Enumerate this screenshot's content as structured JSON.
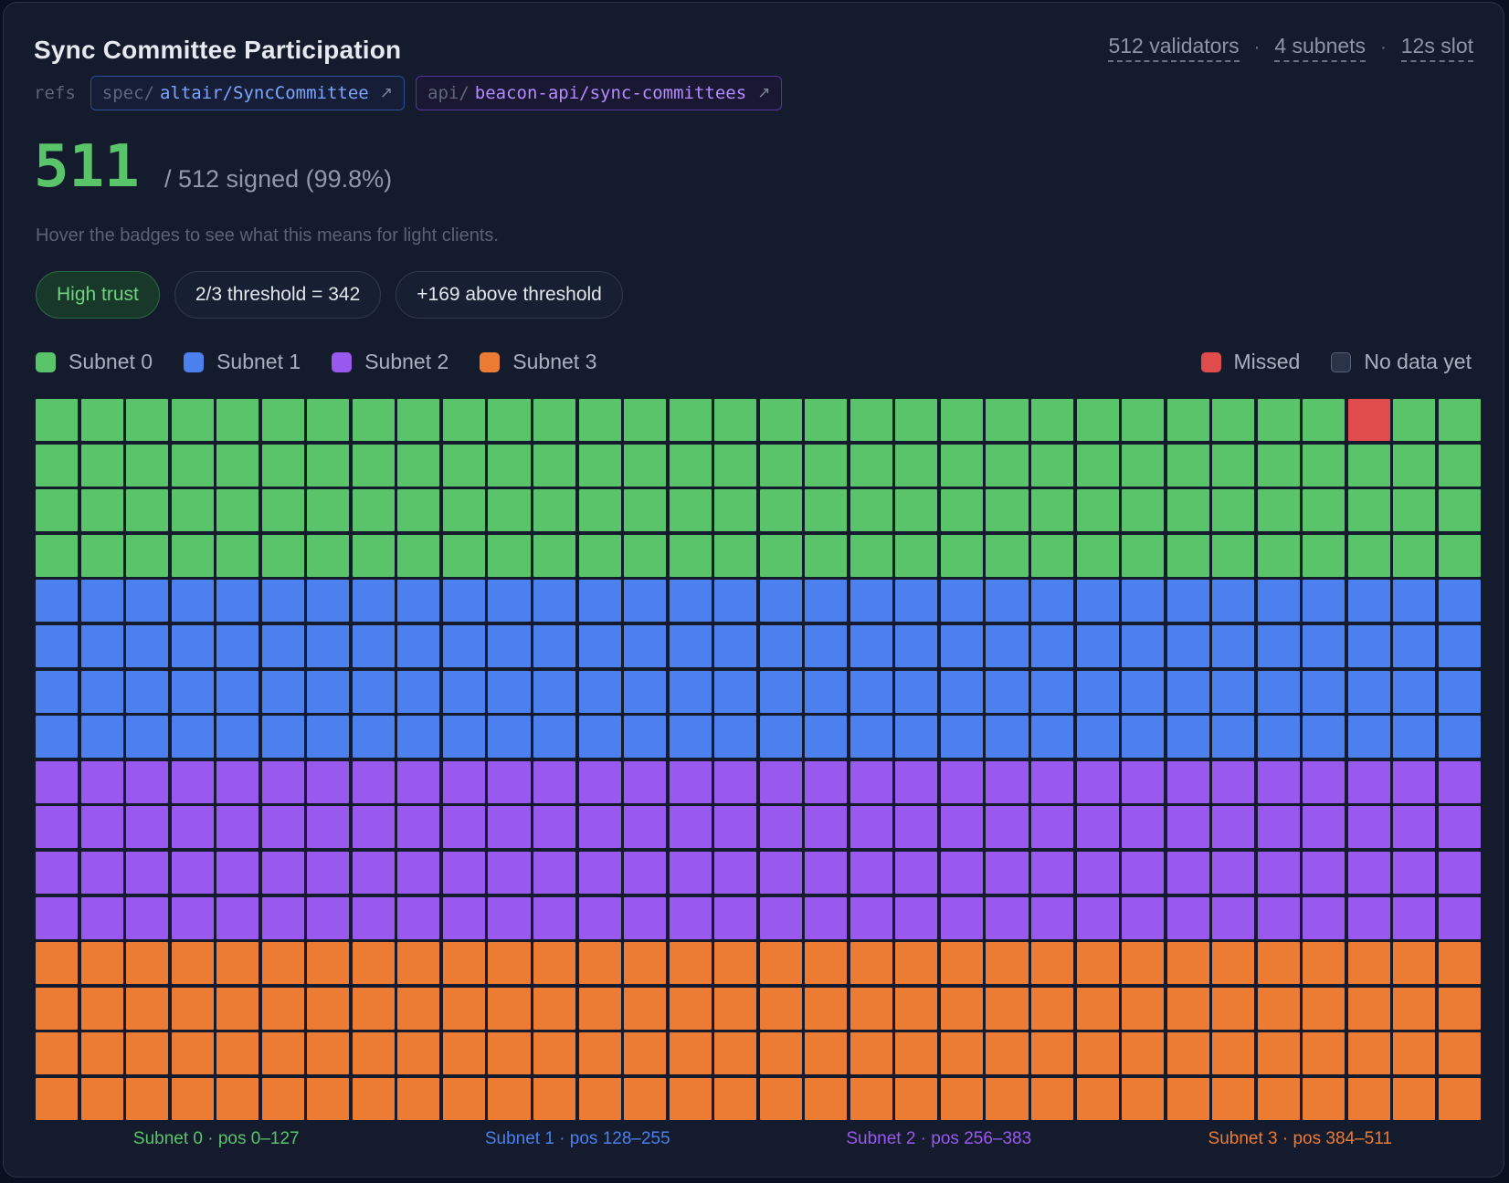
{
  "header": {
    "title": "Sync Committee Participation",
    "stats": [
      "512 validators",
      "4 subnets",
      "12s slot"
    ]
  },
  "refs": {
    "label": "refs",
    "spec": {
      "prefix": "spec/",
      "path": "altair/SyncCommittee",
      "arrow": "↗"
    },
    "api": {
      "prefix": "api/",
      "path": "beacon-api/sync-committees",
      "arrow": "↗"
    }
  },
  "summary": {
    "signed": "511",
    "detail": "/ 512 signed (99.8%)",
    "hint": "Hover the badges to see what this means for light clients."
  },
  "badges": {
    "trust": "High trust",
    "threshold": "2/3 threshold = 342",
    "above": "+169 above threshold"
  },
  "legend": {
    "subnets": [
      "Subnet 0",
      "Subnet 1",
      "Subnet 2",
      "Subnet 3"
    ],
    "missed": "Missed",
    "nodata": "No data yet"
  },
  "colors": {
    "subnet": [
      "#5ac46b",
      "#4b80ee",
      "#9a59ee",
      "#ec7c34"
    ],
    "missed": "#e04b4b",
    "nodata": "#2a3347",
    "nodata_border": "#56617a"
  },
  "grid": {
    "columns": 32,
    "rows_per_subnet": 4,
    "total": 512,
    "missed_positions": [
      29
    ]
  },
  "subnet_labels": [
    "Subnet 0 · pos 0–127",
    "Subnet 1 · pos 128–255",
    "Subnet 2 · pos 256–383",
    "Subnet 3 · pos 384–511"
  ]
}
